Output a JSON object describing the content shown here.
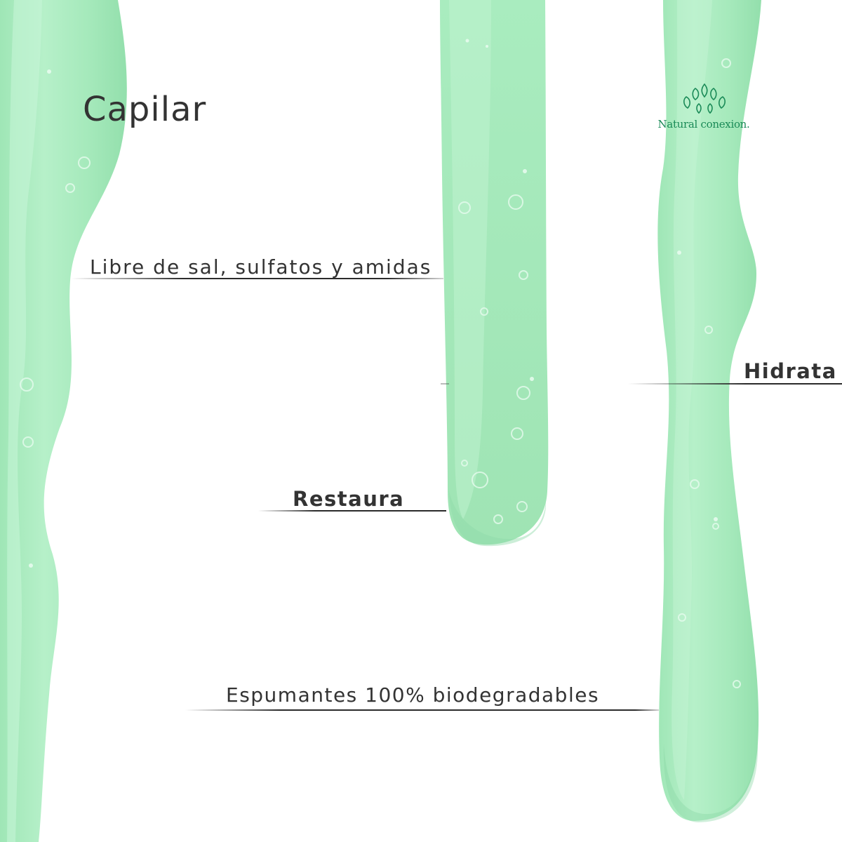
{
  "title": "Capilar",
  "brand": {
    "name": "Natural conexion.",
    "color": "#1a8a57",
    "logo_icon": "leaves-icon"
  },
  "callouts": {
    "libre": "Libre de sal, sulfatos y amidas",
    "hidrata": "Hidrata",
    "restaura": "Restaura",
    "espumantes": "Espumantes 100% biodegradables"
  },
  "colors": {
    "gel": "#a8ecbf",
    "gel_edge": "#8ddfae",
    "text": "#333333",
    "background": "#ffffff"
  }
}
